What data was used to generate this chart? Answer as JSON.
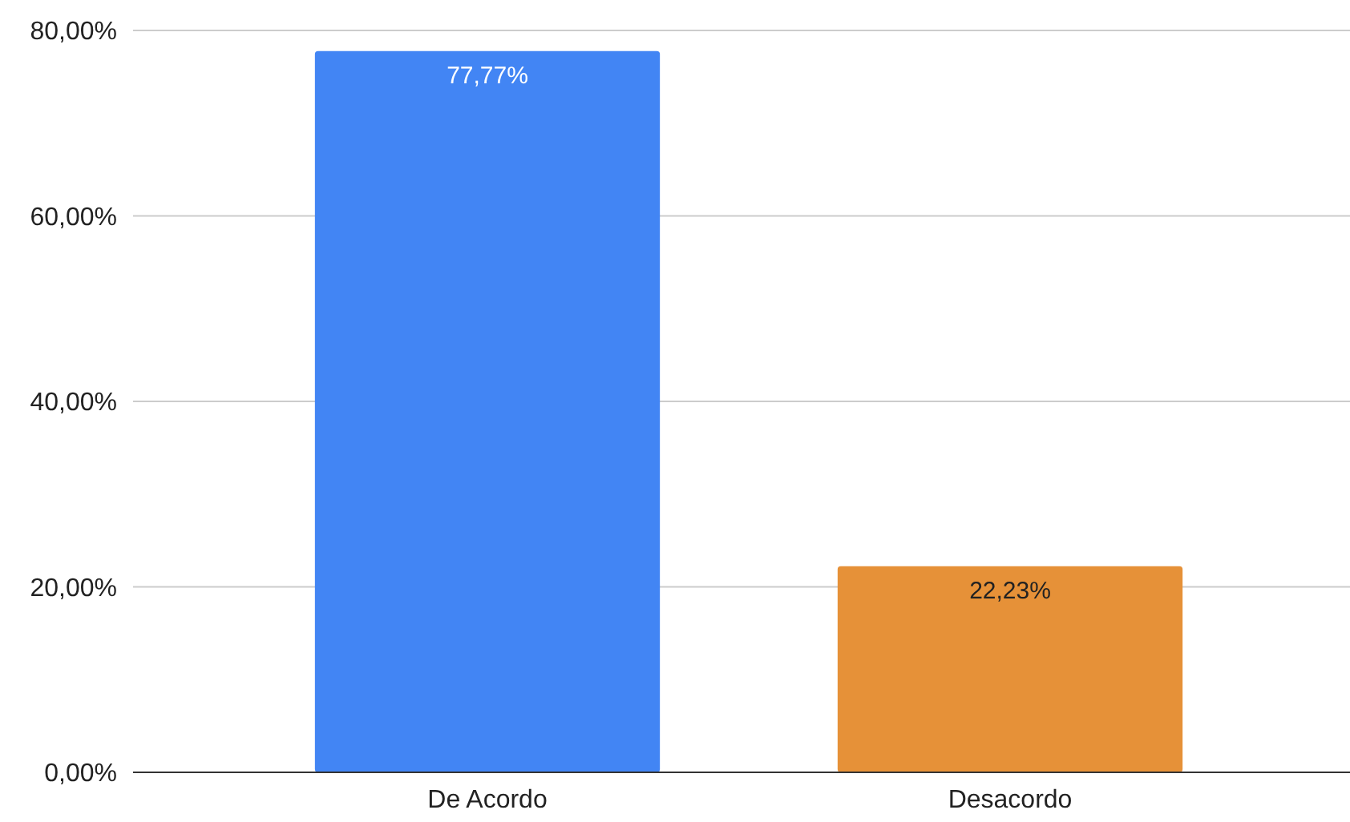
{
  "chart_data": {
    "type": "bar",
    "categories": [
      "De Acordo",
      "Desacordo"
    ],
    "values": [
      77.77,
      22.23
    ],
    "colors": [
      "#4285f4",
      "#e69138"
    ],
    "value_labels": [
      "77,77%",
      "22,23%"
    ],
    "ylim": [
      0,
      80
    ],
    "yticks": [
      {
        "value": 0,
        "label": "0,00%"
      },
      {
        "value": 20,
        "label": "20,00%"
      },
      {
        "value": 40,
        "label": "40,00%"
      },
      {
        "value": 60,
        "label": "60,00%"
      },
      {
        "value": 80,
        "label": "80,00%"
      }
    ],
    "grid": "y"
  }
}
